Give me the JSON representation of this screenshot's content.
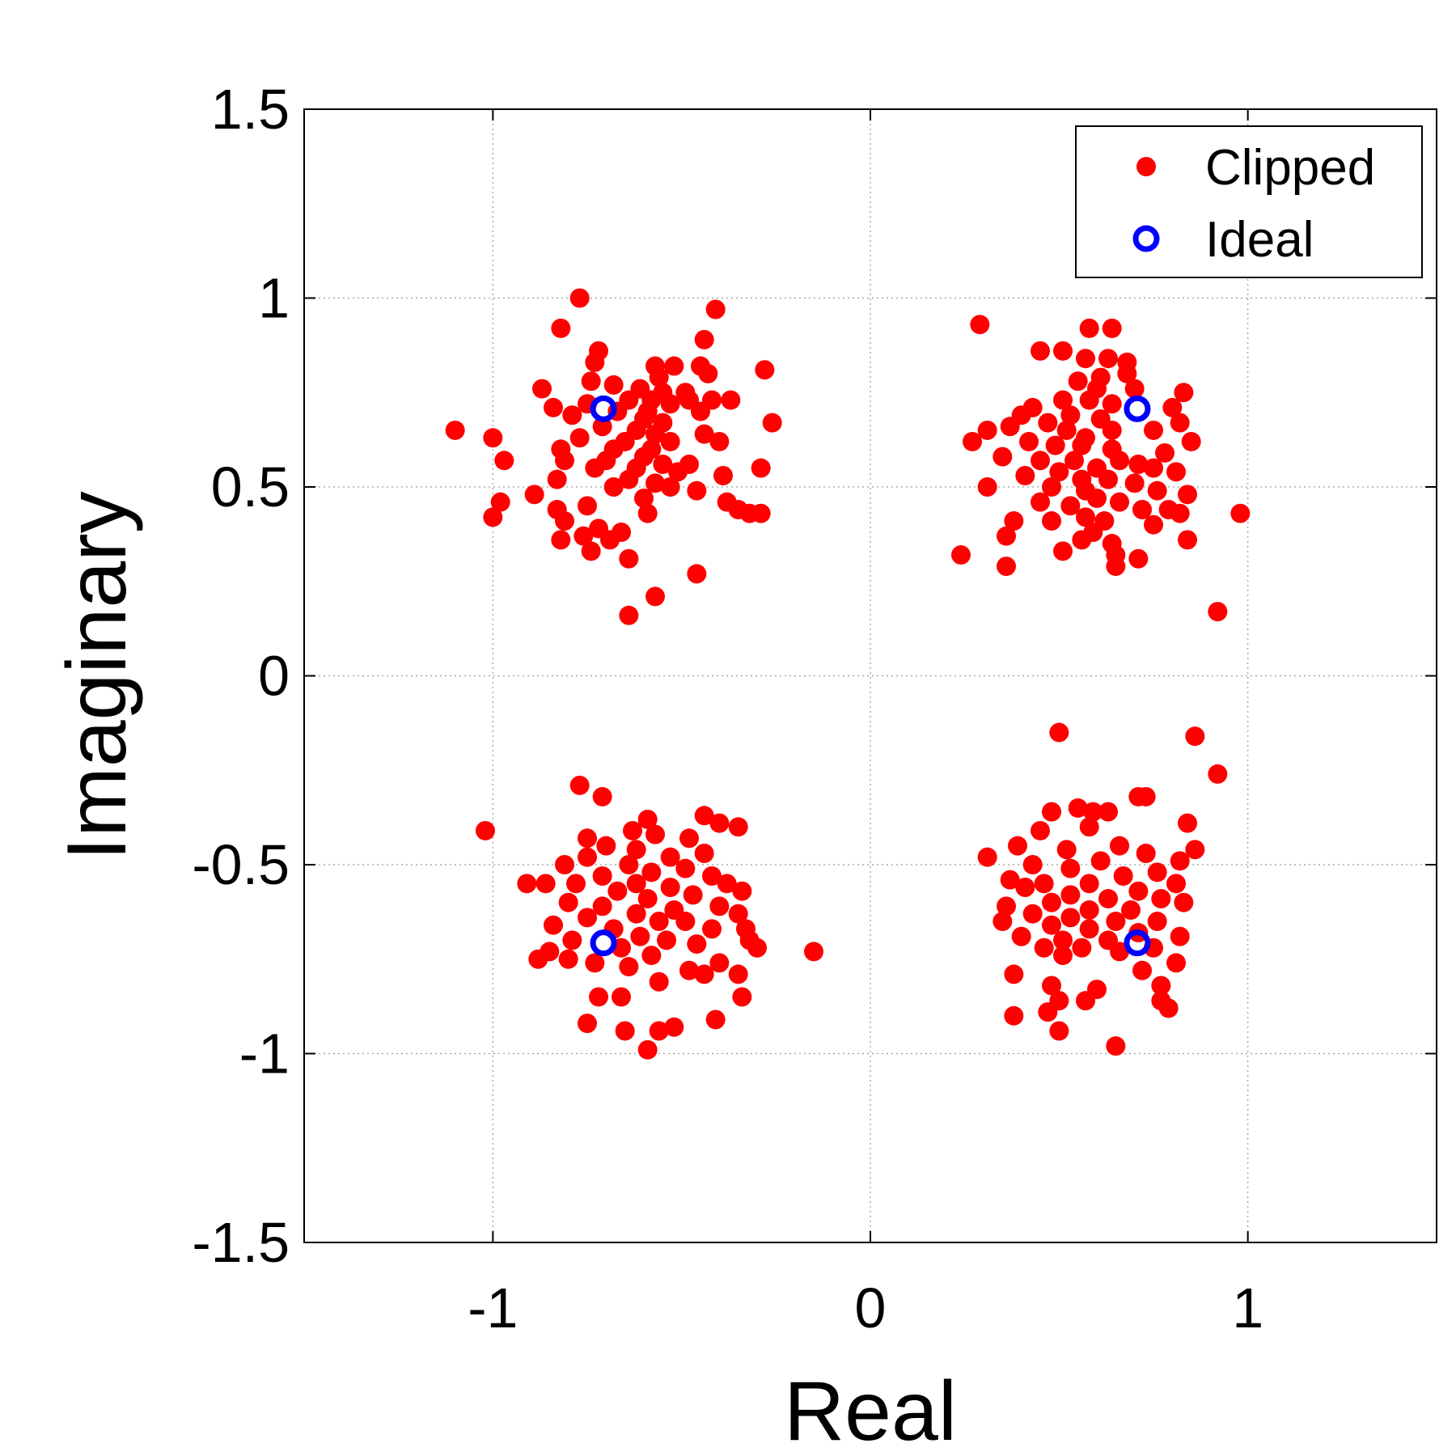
{
  "chart_data": {
    "type": "scatter",
    "title": "",
    "xlabel": "Real",
    "ylabel": "Imaginary",
    "xlim": [
      -1.5,
      1.5
    ],
    "ylim": [
      -1.5,
      1.5
    ],
    "xticks": [
      -1,
      0,
      1
    ],
    "xtick_labels": [
      "-1",
      "0",
      "1"
    ],
    "yticks": [
      -1.5,
      -1,
      -0.5,
      0,
      0.5,
      1,
      1.5
    ],
    "ytick_labels": [
      "-1.5",
      "-1",
      "-0.5",
      "0",
      "0.5",
      "1",
      "1.5"
    ],
    "grid": true,
    "legend_position": "top-right",
    "series": [
      {
        "name": "Clipped",
        "marker": "filled-dot",
        "color": "#ff0000",
        "points": [
          [
            -0.77,
            1.0
          ],
          [
            -0.41,
            0.97
          ],
          [
            -0.82,
            0.92
          ],
          [
            -0.44,
            0.89
          ],
          [
            -0.72,
            0.86
          ],
          [
            -0.73,
            0.83
          ],
          [
            -0.57,
            0.82
          ],
          [
            -0.52,
            0.82
          ],
          [
            -0.45,
            0.82
          ],
          [
            -0.28,
            0.81
          ],
          [
            -0.74,
            0.78
          ],
          [
            -0.43,
            0.8
          ],
          [
            -0.56,
            0.79
          ],
          [
            -0.87,
            0.76
          ],
          [
            -0.68,
            0.77
          ],
          [
            -0.61,
            0.76
          ],
          [
            -0.49,
            0.75
          ],
          [
            -0.55,
            0.75
          ],
          [
            -0.84,
            0.71
          ],
          [
            -0.37,
            0.73
          ],
          [
            -0.64,
            0.73
          ],
          [
            -0.58,
            0.73
          ],
          [
            -0.48,
            0.73
          ],
          [
            -0.42,
            0.73
          ],
          [
            -0.75,
            0.72
          ],
          [
            -0.53,
            0.72
          ],
          [
            -0.79,
            0.69
          ],
          [
            -0.67,
            0.7
          ],
          [
            -0.59,
            0.7
          ],
          [
            -0.45,
            0.7
          ],
          [
            -0.6,
            0.68
          ],
          [
            -0.55,
            0.67
          ],
          [
            -0.26,
            0.67
          ],
          [
            -0.71,
            0.66
          ],
          [
            -1.1,
            0.65
          ],
          [
            -0.62,
            0.65
          ],
          [
            -0.57,
            0.64
          ],
          [
            -0.44,
            0.64
          ],
          [
            -1.0,
            0.63
          ],
          [
            -0.77,
            0.63
          ],
          [
            -0.65,
            0.62
          ],
          [
            -0.53,
            0.62
          ],
          [
            -0.4,
            0.62
          ],
          [
            -0.82,
            0.6
          ],
          [
            -0.68,
            0.6
          ],
          [
            -0.58,
            0.6
          ],
          [
            -0.6,
            0.58
          ],
          [
            -0.97,
            0.57
          ],
          [
            -0.81,
            0.57
          ],
          [
            -0.7,
            0.57
          ],
          [
            -0.55,
            0.56
          ],
          [
            -0.48,
            0.56
          ],
          [
            -0.73,
            0.55
          ],
          [
            -0.62,
            0.55
          ],
          [
            -0.29,
            0.55
          ],
          [
            -0.51,
            0.54
          ],
          [
            -0.39,
            0.53
          ],
          [
            -0.64,
            0.52
          ],
          [
            -0.83,
            0.52
          ],
          [
            -0.57,
            0.51
          ],
          [
            -0.68,
            0.5
          ],
          [
            -0.53,
            0.5
          ],
          [
            -0.46,
            0.49
          ],
          [
            -0.89,
            0.48
          ],
          [
            -0.6,
            0.47
          ],
          [
            -0.98,
            0.46
          ],
          [
            -0.75,
            0.45
          ],
          [
            -0.38,
            0.46
          ],
          [
            -0.83,
            0.44
          ],
          [
            -0.59,
            0.43
          ],
          [
            -0.35,
            0.44
          ],
          [
            -0.29,
            0.43
          ],
          [
            -0.32,
            0.43
          ],
          [
            -1.0,
            0.42
          ],
          [
            -0.81,
            0.41
          ],
          [
            -0.72,
            0.39
          ],
          [
            -0.66,
            0.38
          ],
          [
            -0.69,
            0.36
          ],
          [
            -0.76,
            0.37
          ],
          [
            -0.82,
            0.36
          ],
          [
            -0.74,
            0.33
          ],
          [
            -0.64,
            0.31
          ],
          [
            -0.46,
            0.27
          ],
          [
            -0.57,
            0.21
          ],
          [
            -0.64,
            0.16
          ],
          [
            0.29,
            0.93
          ],
          [
            0.58,
            0.92
          ],
          [
            0.64,
            0.92
          ],
          [
            0.45,
            0.86
          ],
          [
            0.51,
            0.86
          ],
          [
            0.57,
            0.84
          ],
          [
            0.63,
            0.84
          ],
          [
            0.68,
            0.83
          ],
          [
            0.68,
            0.8
          ],
          [
            0.61,
            0.79
          ],
          [
            0.55,
            0.78
          ],
          [
            0.6,
            0.76
          ],
          [
            0.7,
            0.76
          ],
          [
            0.83,
            0.75
          ],
          [
            0.51,
            0.73
          ],
          [
            0.58,
            0.73
          ],
          [
            0.64,
            0.72
          ],
          [
            0.43,
            0.71
          ],
          [
            0.8,
            0.71
          ],
          [
            0.4,
            0.69
          ],
          [
            0.53,
            0.69
          ],
          [
            0.61,
            0.68
          ],
          [
            0.82,
            0.67
          ],
          [
            0.47,
            0.67
          ],
          [
            0.37,
            0.66
          ],
          [
            0.31,
            0.65
          ],
          [
            0.52,
            0.65
          ],
          [
            0.64,
            0.65
          ],
          [
            0.75,
            0.65
          ],
          [
            0.57,
            0.63
          ],
          [
            0.42,
            0.62
          ],
          [
            0.56,
            0.61
          ],
          [
            0.27,
            0.62
          ],
          [
            0.85,
            0.62
          ],
          [
            0.49,
            0.61
          ],
          [
            0.64,
            0.6
          ],
          [
            0.78,
            0.59
          ],
          [
            0.35,
            0.58
          ],
          [
            0.45,
            0.57
          ],
          [
            0.54,
            0.57
          ],
          [
            0.66,
            0.57
          ],
          [
            0.71,
            0.56
          ],
          [
            0.6,
            0.55
          ],
          [
            0.75,
            0.55
          ],
          [
            0.5,
            0.54
          ],
          [
            0.81,
            0.54
          ],
          [
            0.41,
            0.53
          ],
          [
            0.56,
            0.52
          ],
          [
            0.63,
            0.52
          ],
          [
            0.7,
            0.51
          ],
          [
            0.31,
            0.5
          ],
          [
            0.48,
            0.5
          ],
          [
            0.57,
            0.49
          ],
          [
            0.76,
            0.49
          ],
          [
            0.84,
            0.48
          ],
          [
            0.6,
            0.47
          ],
          [
            0.45,
            0.46
          ],
          [
            0.66,
            0.46
          ],
          [
            0.53,
            0.45
          ],
          [
            0.72,
            0.44
          ],
          [
            0.79,
            0.44
          ],
          [
            0.98,
            0.43
          ],
          [
            0.82,
            0.43
          ],
          [
            0.57,
            0.42
          ],
          [
            0.62,
            0.41
          ],
          [
            0.38,
            0.41
          ],
          [
            0.48,
            0.41
          ],
          [
            0.75,
            0.4
          ],
          [
            0.36,
            0.37
          ],
          [
            0.56,
            0.36
          ],
          [
            0.59,
            0.38
          ],
          [
            0.84,
            0.36
          ],
          [
            0.64,
            0.35
          ],
          [
            0.51,
            0.33
          ],
          [
            0.24,
            0.32
          ],
          [
            0.65,
            0.32
          ],
          [
            0.71,
            0.31
          ],
          [
            0.36,
            0.29
          ],
          [
            0.65,
            0.29
          ],
          [
            0.92,
            0.17
          ],
          [
            -0.91,
            -0.55
          ],
          [
            -0.77,
            -0.29
          ],
          [
            -0.71,
            -0.32
          ],
          [
            -1.02,
            -0.41
          ],
          [
            -0.59,
            -0.38
          ],
          [
            -0.44,
            -0.37
          ],
          [
            -0.4,
            -0.39
          ],
          [
            -0.35,
            -0.4
          ],
          [
            -0.63,
            -0.41
          ],
          [
            -0.75,
            -0.43
          ],
          [
            -0.57,
            -0.42
          ],
          [
            -0.48,
            -0.43
          ],
          [
            -0.7,
            -0.45
          ],
          [
            -0.62,
            -0.46
          ],
          [
            -0.44,
            -0.47
          ],
          [
            -0.75,
            -0.48
          ],
          [
            -0.53,
            -0.48
          ],
          [
            -0.81,
            -0.5
          ],
          [
            -0.64,
            -0.5
          ],
          [
            -0.49,
            -0.51
          ],
          [
            -0.58,
            -0.52
          ],
          [
            -0.71,
            -0.53
          ],
          [
            -0.42,
            -0.53
          ],
          [
            -0.78,
            -0.55
          ],
          [
            -0.86,
            -0.55
          ],
          [
            -0.62,
            -0.55
          ],
          [
            -0.53,
            -0.56
          ],
          [
            -0.38,
            -0.55
          ],
          [
            -0.67,
            -0.57
          ],
          [
            -0.47,
            -0.58
          ],
          [
            -0.34,
            -0.57
          ],
          [
            -0.59,
            -0.59
          ],
          [
            -0.8,
            -0.6
          ],
          [
            -0.71,
            -0.61
          ],
          [
            -0.52,
            -0.62
          ],
          [
            -0.4,
            -0.61
          ],
          [
            -0.62,
            -0.63
          ],
          [
            -0.35,
            -0.63
          ],
          [
            -0.75,
            -0.64
          ],
          [
            -0.56,
            -0.65
          ],
          [
            -0.49,
            -0.65
          ],
          [
            -0.84,
            -0.66
          ],
          [
            -0.68,
            -0.67
          ],
          [
            -0.42,
            -0.67
          ],
          [
            -0.33,
            -0.67
          ],
          [
            -0.61,
            -0.69
          ],
          [
            -0.79,
            -0.7
          ],
          [
            -0.54,
            -0.7
          ],
          [
            -0.46,
            -0.71
          ],
          [
            -0.32,
            -0.7
          ],
          [
            -0.66,
            -0.72
          ],
          [
            -0.85,
            -0.73
          ],
          [
            -0.58,
            -0.74
          ],
          [
            -0.3,
            -0.72
          ],
          [
            -0.15,
            -0.73
          ],
          [
            -0.8,
            -0.75
          ],
          [
            -0.73,
            -0.76
          ],
          [
            -0.64,
            -0.77
          ],
          [
            -0.4,
            -0.76
          ],
          [
            -0.48,
            -0.78
          ],
          [
            -0.88,
            -0.75
          ],
          [
            -0.35,
            -0.79
          ],
          [
            -0.56,
            -0.81
          ],
          [
            -0.44,
            -0.79
          ],
          [
            -0.72,
            -0.85
          ],
          [
            -0.66,
            -0.85
          ],
          [
            -0.34,
            -0.85
          ],
          [
            -0.75,
            -0.92
          ],
          [
            -0.52,
            -0.93
          ],
          [
            -0.41,
            -0.91
          ],
          [
            -0.65,
            -0.94
          ],
          [
            -0.56,
            -0.94
          ],
          [
            -0.59,
            -0.99
          ],
          [
            0.5,
            -0.15
          ],
          [
            0.86,
            -0.16
          ],
          [
            0.92,
            -0.26
          ],
          [
            0.71,
            -0.32
          ],
          [
            0.73,
            -0.32
          ],
          [
            0.59,
            -0.36
          ],
          [
            0.48,
            -0.36
          ],
          [
            0.55,
            -0.35
          ],
          [
            0.63,
            -0.36
          ],
          [
            0.58,
            -0.4
          ],
          [
            0.84,
            -0.39
          ],
          [
            0.45,
            -0.41
          ],
          [
            0.39,
            -0.45
          ],
          [
            0.66,
            -0.45
          ],
          [
            0.52,
            -0.46
          ],
          [
            0.86,
            -0.46
          ],
          [
            0.73,
            -0.47
          ],
          [
            0.31,
            -0.48
          ],
          [
            0.82,
            -0.49
          ],
          [
            0.61,
            -0.49
          ],
          [
            0.43,
            -0.5
          ],
          [
            0.53,
            -0.51
          ],
          [
            0.76,
            -0.52
          ],
          [
            0.67,
            -0.53
          ],
          [
            0.37,
            -0.54
          ],
          [
            0.46,
            -0.55
          ],
          [
            0.58,
            -0.55
          ],
          [
            0.81,
            -0.55
          ],
          [
            0.41,
            -0.56
          ],
          [
            0.71,
            -0.57
          ],
          [
            0.53,
            -0.58
          ],
          [
            0.63,
            -0.59
          ],
          [
            0.77,
            -0.59
          ],
          [
            0.48,
            -0.6
          ],
          [
            0.83,
            -0.6
          ],
          [
            0.36,
            -0.61
          ],
          [
            0.58,
            -0.62
          ],
          [
            0.69,
            -0.62
          ],
          [
            0.43,
            -0.63
          ],
          [
            0.53,
            -0.64
          ],
          [
            0.65,
            -0.65
          ],
          [
            0.35,
            -0.65
          ],
          [
            0.76,
            -0.65
          ],
          [
            0.48,
            -0.66
          ],
          [
            0.58,
            -0.67
          ],
          [
            0.71,
            -0.68
          ],
          [
            0.4,
            -0.69
          ],
          [
            0.51,
            -0.7
          ],
          [
            0.63,
            -0.7
          ],
          [
            0.82,
            -0.69
          ],
          [
            0.46,
            -0.72
          ],
          [
            0.56,
            -0.72
          ],
          [
            0.75,
            -0.72
          ],
          [
            0.66,
            -0.73
          ],
          [
            0.51,
            -0.74
          ],
          [
            0.81,
            -0.76
          ],
          [
            0.38,
            -0.79
          ],
          [
            0.72,
            -0.78
          ],
          [
            0.48,
            -0.82
          ],
          [
            0.6,
            -0.83
          ],
          [
            0.77,
            -0.82
          ],
          [
            0.5,
            -0.86
          ],
          [
            0.57,
            -0.86
          ],
          [
            0.77,
            -0.86
          ],
          [
            0.38,
            -0.9
          ],
          [
            0.47,
            -0.89
          ],
          [
            0.79,
            -0.88
          ],
          [
            0.5,
            -0.94
          ],
          [
            0.65,
            -0.98
          ]
        ]
      },
      {
        "name": "Ideal",
        "marker": "open-circle",
        "color": "#0000ff",
        "points": [
          [
            -0.707,
            0.707
          ],
          [
            0.707,
            0.707
          ],
          [
            -0.707,
            -0.707
          ],
          [
            0.707,
            -0.707
          ]
        ]
      }
    ]
  }
}
